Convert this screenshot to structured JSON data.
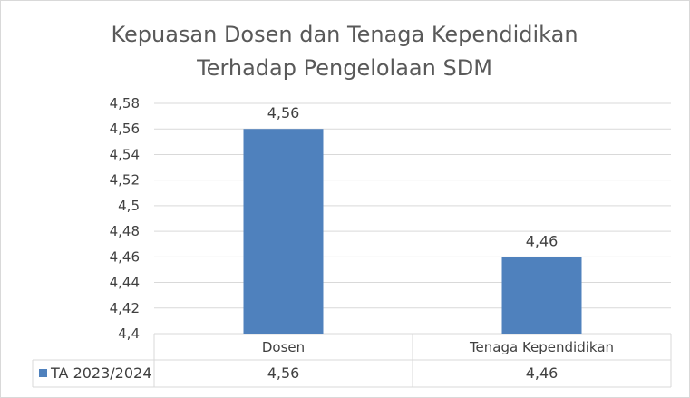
{
  "chart_data": {
    "type": "bar",
    "title_lines": [
      "Kepuasan Dosen dan Tenaga Kependidikan",
      "Terhadap Pengelolaan SDM"
    ],
    "categories": [
      "Dosen",
      "Tenaga Kependidikan"
    ],
    "series": [
      {
        "name": "TA 2023/2024",
        "values": [
          4.56,
          4.46
        ],
        "value_labels": [
          "4,56",
          "4,46"
        ],
        "color": "#4f81bd"
      }
    ],
    "ylim": [
      4.4,
      4.58
    ],
    "yticks": [
      4.4,
      4.42,
      4.44,
      4.46,
      4.48,
      4.5,
      4.52,
      4.54,
      4.56,
      4.58
    ],
    "ytick_labels": [
      "4,4",
      "4,42",
      "4,44",
      "4,46",
      "4,48",
      "4,5",
      "4,52",
      "4,54",
      "4,56",
      "4,58"
    ],
    "grid": true,
    "legend": "data-table",
    "data_table": true,
    "colors": {
      "grid": "#d9d9d9",
      "text": "#404040",
      "title": "#595959"
    }
  }
}
